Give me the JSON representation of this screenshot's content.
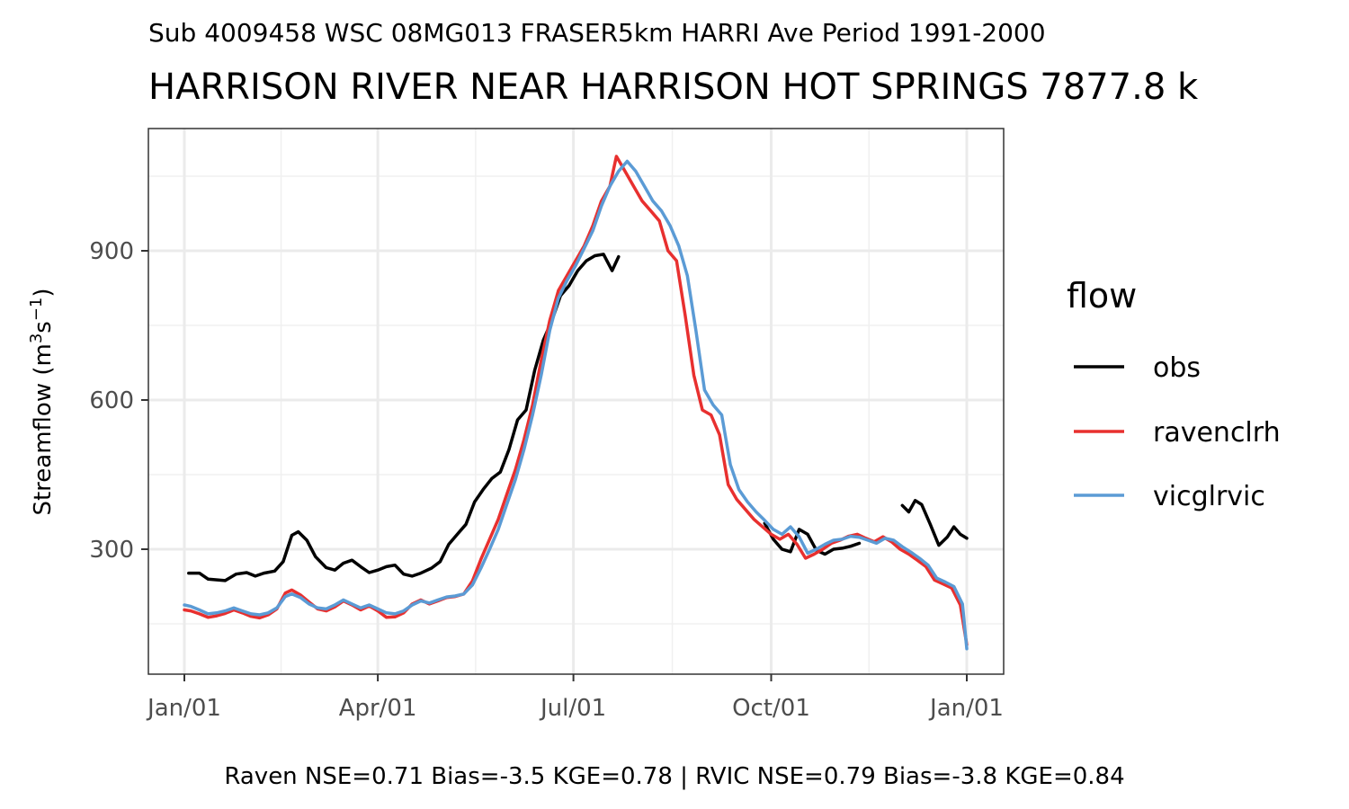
{
  "chart_data": {
    "type": "line",
    "subtitle": "Sub 4009458 WSC 08MG013 FRASER5km HARRI Ave Period 1991-2000",
    "title": "HARRISON RIVER NEAR HARRISON HOT SPRINGS 7877.8 k",
    "ylabel": "Streamflow (m³s⁻¹)",
    "ylabel_base": "Streamflow (m",
    "ylabel_sup1": "3",
    "ylabel_mid": "s",
    "ylabel_sup2": "−1",
    "ylabel_end": ")",
    "xlabel": "",
    "caption": "Raven NSE=0.71 Bias=-3.5 KGE=0.78 | RVIC NSE=0.79 Bias=-3.8 KGE=0.84",
    "x_ticks": [
      "Jan/01",
      "Apr/01",
      "Jul/01",
      "Oct/01",
      "Jan/01"
    ],
    "x_tick_dates": [
      "01-01",
      "04-01",
      "07-01",
      "10-01",
      "12-31"
    ],
    "y_ticks": [
      300,
      600,
      900
    ],
    "ylim": [
      25,
      1130
    ],
    "legend_title": "flow",
    "legend_position": "right",
    "grid": true,
    "series": [
      {
        "name": "obs",
        "color": "#000000",
        "segments": [
          [
            [
              "01-03",
              252
            ],
            [
              "01-08",
              252
            ],
            [
              "01-12",
              240
            ],
            [
              "01-20",
              237
            ],
            [
              "01-25",
              250
            ],
            [
              "01-30",
              253
            ],
            [
              "02-03",
              246
            ],
            [
              "02-07",
              252
            ],
            [
              "02-12",
              256
            ],
            [
              "02-16",
              275
            ],
            [
              "02-20",
              328
            ],
            [
              "02-23",
              335
            ],
            [
              "02-27",
              318
            ],
            [
              "03-03",
              285
            ],
            [
              "03-08",
              263
            ],
            [
              "03-12",
              258
            ],
            [
              "03-16",
              272
            ],
            [
              "03-20",
              278
            ],
            [
              "03-24",
              265
            ],
            [
              "03-28",
              253
            ],
            [
              "04-01",
              258
            ],
            [
              "04-05",
              265
            ],
            [
              "04-09",
              268
            ],
            [
              "04-13",
              250
            ],
            [
              "04-17",
              246
            ],
            [
              "04-21",
              252
            ],
            [
              "04-26",
              262
            ],
            [
              "04-30",
              275
            ],
            [
              "05-04",
              310
            ],
            [
              "05-08",
              330
            ],
            [
              "05-12",
              350
            ],
            [
              "05-16",
              395
            ],
            [
              "05-20",
              420
            ],
            [
              "05-24",
              442
            ],
            [
              "05-28",
              455
            ],
            [
              "06-01",
              500
            ],
            [
              "06-05",
              560
            ],
            [
              "06-09",
              580
            ],
            [
              "06-13",
              660
            ],
            [
              "06-17",
              720
            ],
            [
              "06-21",
              760
            ],
            [
              "06-25",
              810
            ],
            [
              "06-29",
              830
            ],
            [
              "07-03",
              860
            ],
            [
              "07-07",
              880
            ],
            [
              "07-11",
              890
            ],
            [
              "07-15",
              893
            ],
            [
              "07-19",
              860
            ],
            [
              "07-22",
              888
            ]
          ],
          [
            [
              "09-28",
              352
            ],
            [
              "10-02",
              320
            ],
            [
              "10-06",
              300
            ],
            [
              "10-10",
              295
            ],
            [
              "10-14",
              340
            ],
            [
              "10-18",
              330
            ],
            [
              "10-22",
              298
            ],
            [
              "10-26",
              290
            ],
            [
              "10-30",
              300
            ],
            [
              "11-03",
              302
            ],
            [
              "11-07",
              306
            ],
            [
              "11-11",
              312
            ]
          ],
          [
            [
              "12-01",
              388
            ],
            [
              "12-04",
              375
            ],
            [
              "12-07",
              398
            ],
            [
              "12-10",
              390
            ],
            [
              "12-14",
              350
            ],
            [
              "12-18",
              308
            ],
            [
              "12-22",
              325
            ],
            [
              "12-25",
              345
            ],
            [
              "12-28",
              330
            ],
            [
              "12-31",
              322
            ]
          ]
        ]
      },
      {
        "name": "ravenclrh",
        "color": "#e8302f",
        "segments": [
          [
            [
              "01-01",
              178
            ],
            [
              "01-04",
              176
            ],
            [
              "01-08",
              170
            ],
            [
              "01-12",
              163
            ],
            [
              "01-16",
              166
            ],
            [
              "01-20",
              171
            ],
            [
              "01-24",
              178
            ],
            [
              "01-28",
              172
            ],
            [
              "02-01",
              165
            ],
            [
              "02-05",
              162
            ],
            [
              "02-09",
              168
            ],
            [
              "02-13",
              180
            ],
            [
              "02-17",
              212
            ],
            [
              "02-20",
              218
            ],
            [
              "02-24",
              208
            ],
            [
              "02-28",
              194
            ],
            [
              "03-04",
              180
            ],
            [
              "03-08",
              176
            ],
            [
              "03-12",
              184
            ],
            [
              "03-16",
              196
            ],
            [
              "03-20",
              188
            ],
            [
              "03-24",
              178
            ],
            [
              "03-28",
              186
            ],
            [
              "04-01",
              176
            ],
            [
              "04-05",
              163
            ],
            [
              "04-09",
              164
            ],
            [
              "04-13",
              172
            ],
            [
              "04-17",
              190
            ],
            [
              "04-21",
              198
            ],
            [
              "04-25",
              190
            ],
            [
              "04-29",
              196
            ],
            [
              "05-03",
              203
            ],
            [
              "05-07",
              205
            ],
            [
              "05-11",
              210
            ],
            [
              "05-15",
              236
            ],
            [
              "05-19",
              280
            ],
            [
              "05-23",
              320
            ],
            [
              "05-27",
              360
            ],
            [
              "05-31",
              410
            ],
            [
              "06-04",
              460
            ],
            [
              "06-08",
              520
            ],
            [
              "06-12",
              590
            ],
            [
              "06-16",
              680
            ],
            [
              "06-20",
              760
            ],
            [
              "06-24",
              820
            ],
            [
              "06-28",
              850
            ],
            [
              "07-02",
              880
            ],
            [
              "07-06",
              910
            ],
            [
              "07-10",
              950
            ],
            [
              "07-14",
              1000
            ],
            [
              "07-18",
              1030
            ],
            [
              "07-21",
              1090
            ],
            [
              "07-25",
              1060
            ],
            [
              "07-29",
              1030
            ],
            [
              "08-02",
              1000
            ],
            [
              "08-06",
              980
            ],
            [
              "08-10",
              960
            ],
            [
              "08-14",
              900
            ],
            [
              "08-18",
              880
            ],
            [
              "08-22",
              770
            ],
            [
              "08-26",
              650
            ],
            [
              "08-30",
              580
            ],
            [
              "09-03",
              570
            ],
            [
              "09-07",
              530
            ],
            [
              "09-11",
              430
            ],
            [
              "09-15",
              400
            ],
            [
              "09-19",
              380
            ],
            [
              "09-23",
              360
            ],
            [
              "09-27",
              345
            ],
            [
              "10-01",
              330
            ],
            [
              "10-05",
              320
            ],
            [
              "10-09",
              330
            ],
            [
              "10-13",
              310
            ],
            [
              "10-17",
              282
            ],
            [
              "10-21",
              290
            ],
            [
              "10-25",
              300
            ],
            [
              "10-29",
              312
            ],
            [
              "11-02",
              318
            ],
            [
              "11-06",
              326
            ],
            [
              "11-10",
              330
            ],
            [
              "11-14",
              322
            ],
            [
              "11-18",
              315
            ],
            [
              "11-22",
              325
            ],
            [
              "11-26",
              315
            ],
            [
              "11-30",
              300
            ],
            [
              "12-04",
              290
            ],
            [
              "12-08",
              278
            ],
            [
              "12-12",
              265
            ],
            [
              "12-16",
              238
            ],
            [
              "12-20",
              230
            ],
            [
              "12-24",
              222
            ],
            [
              "12-28",
              188
            ],
            [
              "12-31",
              108
            ]
          ]
        ]
      },
      {
        "name": "vicglrvic",
        "color": "#5b9bd5",
        "segments": [
          [
            [
              "01-01",
              188
            ],
            [
              "01-04",
              185
            ],
            [
              "01-08",
              178
            ],
            [
              "01-12",
              170
            ],
            [
              "01-16",
              172
            ],
            [
              "01-20",
              176
            ],
            [
              "01-24",
              182
            ],
            [
              "01-28",
              176
            ],
            [
              "02-01",
              170
            ],
            [
              "02-05",
              168
            ],
            [
              "02-09",
              172
            ],
            [
              "02-13",
              182
            ],
            [
              "02-17",
              205
            ],
            [
              "02-20",
              210
            ],
            [
              "02-24",
              203
            ],
            [
              "02-28",
              190
            ],
            [
              "03-04",
              182
            ],
            [
              "03-08",
              180
            ],
            [
              "03-12",
              188
            ],
            [
              "03-16",
              198
            ],
            [
              "03-20",
              190
            ],
            [
              "03-24",
              182
            ],
            [
              "03-28",
              188
            ],
            [
              "04-01",
              180
            ],
            [
              "04-05",
              172
            ],
            [
              "04-09",
              170
            ],
            [
              "04-13",
              176
            ],
            [
              "04-17",
              188
            ],
            [
              "04-21",
              196
            ],
            [
              "04-25",
              192
            ],
            [
              "04-29",
              198
            ],
            [
              "05-03",
              204
            ],
            [
              "05-07",
              206
            ],
            [
              "05-11",
              210
            ],
            [
              "05-15",
              228
            ],
            [
              "05-19",
              262
            ],
            [
              "05-23",
              300
            ],
            [
              "05-27",
              340
            ],
            [
              "05-31",
              390
            ],
            [
              "06-04",
              440
            ],
            [
              "06-08",
              500
            ],
            [
              "06-12",
              570
            ],
            [
              "06-16",
              650
            ],
            [
              "06-20",
              740
            ],
            [
              "06-24",
              805
            ],
            [
              "06-28",
              840
            ],
            [
              "07-02",
              870
            ],
            [
              "07-06",
              905
            ],
            [
              "07-10",
              940
            ],
            [
              "07-14",
              990
            ],
            [
              "07-18",
              1030
            ],
            [
              "07-22",
              1060
            ],
            [
              "07-26",
              1080
            ],
            [
              "07-30",
              1060
            ],
            [
              "08-03",
              1030
            ],
            [
              "08-07",
              1000
            ],
            [
              "08-11",
              980
            ],
            [
              "08-15",
              950
            ],
            [
              "08-19",
              910
            ],
            [
              "08-23",
              850
            ],
            [
              "08-27",
              740
            ],
            [
              "08-31",
              620
            ],
            [
              "09-04",
              590
            ],
            [
              "09-08",
              570
            ],
            [
              "09-12",
              470
            ],
            [
              "09-16",
              420
            ],
            [
              "09-20",
              395
            ],
            [
              "09-24",
              375
            ],
            [
              "09-28",
              358
            ],
            [
              "10-02",
              340
            ],
            [
              "10-06",
              330
            ],
            [
              "10-10",
              345
            ],
            [
              "10-14",
              325
            ],
            [
              "10-18",
              292
            ],
            [
              "10-22",
              300
            ],
            [
              "10-26",
              310
            ],
            [
              "10-30",
              318
            ],
            [
              "11-03",
              320
            ],
            [
              "11-07",
              326
            ],
            [
              "11-11",
              324
            ],
            [
              "11-15",
              318
            ],
            [
              "11-19",
              312
            ],
            [
              "11-23",
              322
            ],
            [
              "11-27",
              318
            ],
            [
              "12-01",
              305
            ],
            [
              "12-05",
              294
            ],
            [
              "12-09",
              282
            ],
            [
              "12-13",
              268
            ],
            [
              "12-17",
              242
            ],
            [
              "12-21",
              234
            ],
            [
              "12-25",
              225
            ],
            [
              "12-29",
              190
            ],
            [
              "12-31",
              100
            ]
          ]
        ]
      }
    ]
  }
}
